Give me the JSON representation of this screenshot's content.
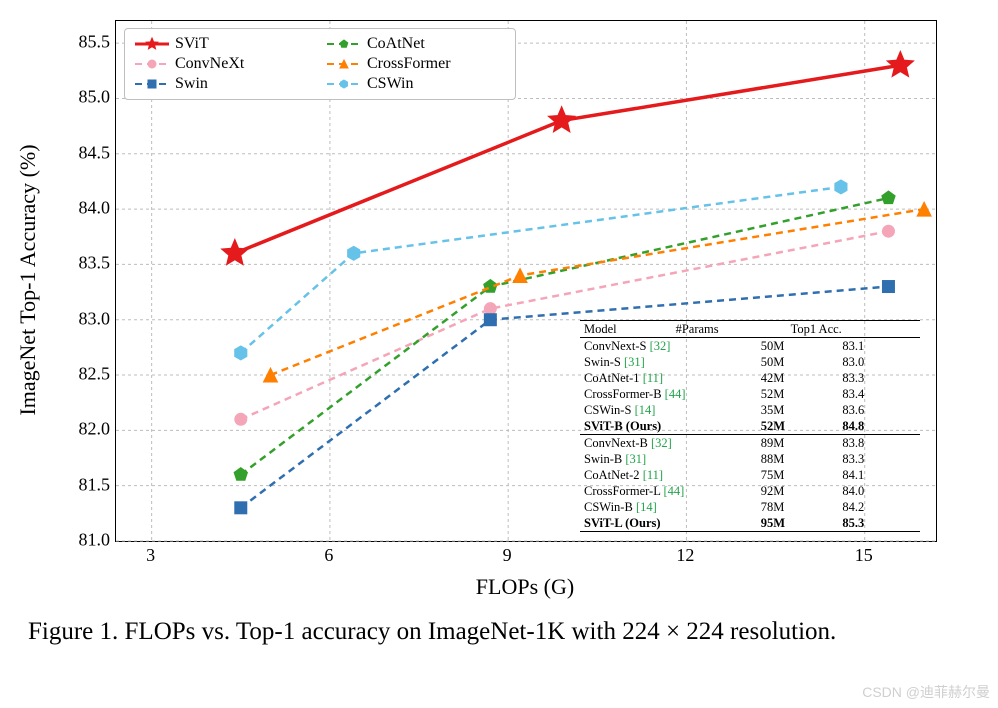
{
  "chart": {
    "type": "line",
    "xlabel": "FLOPs (G)",
    "ylabel": "ImageNet Top-1 Accuracy (%)",
    "xlim": [
      2.4,
      16.2
    ],
    "ylim": [
      81.0,
      85.7
    ],
    "xticks": [
      3,
      6,
      9,
      12,
      15
    ],
    "yticks": [
      81.0,
      81.5,
      82.0,
      82.5,
      83.0,
      83.5,
      84.0,
      84.5,
      85.0,
      85.5
    ],
    "background_color": "#ffffff",
    "grid_color": "#bdbdbd",
    "grid_dash": "3,3",
    "axis_fontsize": 22,
    "tick_fontsize": 18,
    "line_width": 2.5,
    "svit_line_width": 3.5,
    "series": [
      {
        "name": "SViT",
        "color": "#e41a1c",
        "dash": "",
        "marker": "star",
        "marker_size": 14,
        "x": [
          4.4,
          9.9,
          15.6
        ],
        "y": [
          83.6,
          84.8,
          85.3
        ]
      },
      {
        "name": "ConvNeXt",
        "color": "#f4a5b8",
        "dash": "7,5",
        "marker": "circle",
        "marker_size": 6,
        "x": [
          4.5,
          8.7,
          15.4
        ],
        "y": [
          82.1,
          83.1,
          83.8
        ]
      },
      {
        "name": "Swin",
        "color": "#2f6fb0",
        "dash": "7,5",
        "marker": "square",
        "marker_size": 6,
        "x": [
          4.5,
          8.7,
          15.4
        ],
        "y": [
          81.3,
          83.0,
          83.3
        ]
      },
      {
        "name": "CoAtNet",
        "color": "#33a02c",
        "dash": "7,5",
        "marker": "pentagon",
        "marker_size": 7,
        "x": [
          4.5,
          8.7,
          15.4
        ],
        "y": [
          81.6,
          83.3,
          84.1
        ]
      },
      {
        "name": "CrossFormer",
        "color": "#ff7f00",
        "dash": "7,5",
        "marker": "triangle",
        "marker_size": 7,
        "x": [
          5.0,
          9.2,
          16.0
        ],
        "y": [
          82.5,
          83.4,
          84.0
        ]
      },
      {
        "name": "CSWin",
        "color": "#66c2e8",
        "dash": "7,5",
        "marker": "hexagon",
        "marker_size": 7,
        "x": [
          4.5,
          6.4,
          14.6
        ],
        "y": [
          82.7,
          83.6,
          84.2
        ]
      }
    ],
    "legend": {
      "entries": [
        "SViT",
        "ConvNeXt",
        "Swin",
        "CoAtNet",
        "CrossFormer",
        "CSWin"
      ],
      "order": [
        "SViT",
        "CoAtNet",
        "ConvNeXt",
        "CrossFormer",
        "Swin",
        "CSWin"
      ],
      "frame_color": "#bfbfbf",
      "fontsize": 16
    }
  },
  "table": {
    "fontsize": 12.5,
    "headers": [
      "Model",
      "#Params",
      "Top1 Acc."
    ],
    "groups": [
      [
        {
          "model": "ConvNext-S",
          "ref": "[32]",
          "params": "50M",
          "acc": "83.1"
        },
        {
          "model": "Swin-S",
          "ref": "[31]",
          "params": "50M",
          "acc": "83.0"
        },
        {
          "model": "CoAtNet-1",
          "ref": "[11]",
          "params": "42M",
          "acc": "83.3"
        },
        {
          "model": "CrossFormer-B",
          "ref": "[44]",
          "params": "52M",
          "acc": "83.4"
        },
        {
          "model": "CSWin-S",
          "ref": "[14]",
          "params": "35M",
          "acc": "83.6"
        },
        {
          "model": "SViT-B (Ours)",
          "ref": "",
          "params": "52M",
          "acc": "84.8",
          "bold": true
        }
      ],
      [
        {
          "model": "ConvNext-B",
          "ref": "[32]",
          "params": "89M",
          "acc": "83.8"
        },
        {
          "model": "Swin-B",
          "ref": "[31]",
          "params": "88M",
          "acc": "83.3"
        },
        {
          "model": "CoAtNet-2",
          "ref": "[11]",
          "params": "75M",
          "acc": "84.1"
        },
        {
          "model": "CrossFormer-L",
          "ref": "[44]",
          "params": "92M",
          "acc": "84.0"
        },
        {
          "model": "CSWin-B",
          "ref": "[14]",
          "params": "78M",
          "acc": "84.2"
        },
        {
          "model": "SViT-L (Ours)",
          "ref": "",
          "params": "95M",
          "acc": "85.3",
          "bold": true
        }
      ]
    ]
  },
  "caption": "Figure 1. FLOPs vs. Top-1 accuracy on ImageNet-1K with 224 × 224 resolution.",
  "watermark": "CSDN @迪菲赫尔曼"
}
